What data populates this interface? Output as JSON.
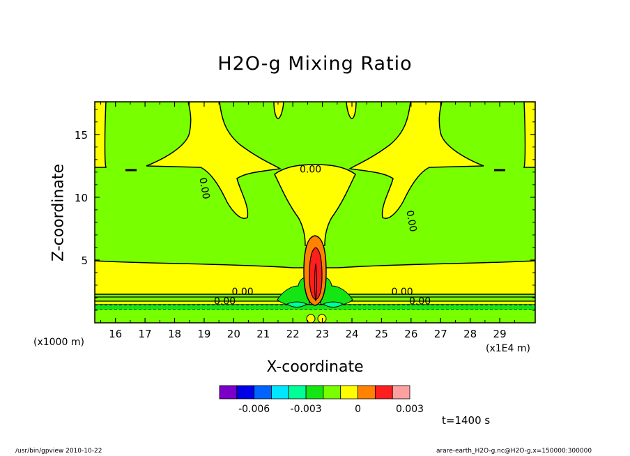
{
  "chart_data": {
    "type": "contour",
    "title": "H2O-g Mixing Ratio",
    "xlabel": "X-coordinate",
    "ylabel": "Z-coordinate",
    "x_unit_note": "(x1E4 m)",
    "y_unit_note": "(x1000 m)",
    "xlim": [
      15.3,
      30.2
    ],
    "ylim": [
      0.0,
      17.6
    ],
    "x_ticks": [
      16,
      17,
      18,
      19,
      20,
      21,
      22,
      23,
      24,
      25,
      26,
      27,
      28,
      29
    ],
    "y_ticks": [
      5,
      10,
      15
    ],
    "contour_labels": [
      {
        "text": "0.00",
        "x": 22.6,
        "z": 12.2
      },
      {
        "text": "0.00",
        "x": 19.0,
        "z": 10.7,
        "rotated": true
      },
      {
        "text": "0.00",
        "x": 26.0,
        "z": 8.1,
        "rotated": true
      },
      {
        "text": "0.00",
        "x": 20.3,
        "z": 2.45
      },
      {
        "text": "0.00",
        "x": 19.7,
        "z": 1.7
      },
      {
        "text": "0.00",
        "x": 25.7,
        "z": 2.45
      },
      {
        "text": "0.00",
        "x": 26.3,
        "z": 1.7
      }
    ],
    "colorbar": {
      "colors": [
        "#7a00c8",
        "#0000e6",
        "#0064ff",
        "#00e6ff",
        "#00ff96",
        "#14e614",
        "#78ff00",
        "#ffff00",
        "#ff8200",
        "#ff1e1e",
        "#ffa0a0"
      ],
      "tick_labels": [
        "-0.006",
        "-0.003",
        "0",
        "0.003"
      ],
      "tick_values": [
        -0.006,
        -0.003,
        0.0,
        0.003
      ]
    },
    "time_label": "t=1400 s"
  },
  "footer": {
    "left": "/usr/bin/gpview  2010-10-22",
    "right": "arare-earth_H2O-g.nc@H2O-g,x=150000:300000"
  }
}
